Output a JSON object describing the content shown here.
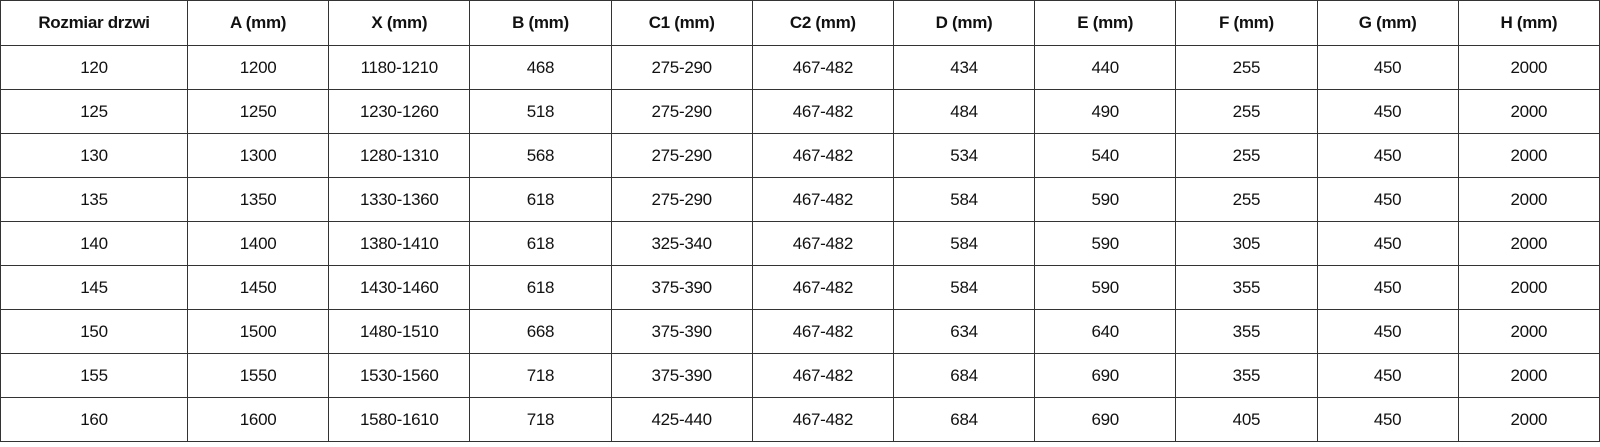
{
  "table": {
    "headers": [
      "Rozmiar drzwi",
      "A (mm)",
      "X (mm)",
      "B (mm)",
      "C1 (mm)",
      "C2 (mm)",
      "D (mm)",
      "E (mm)",
      "F (mm)",
      "G (mm)",
      "H (mm)"
    ],
    "rows": [
      [
        "120",
        "1200",
        "1180-1210",
        "468",
        "275-290",
        "467-482",
        "434",
        "440",
        "255",
        "450",
        "2000"
      ],
      [
        "125",
        "1250",
        "1230-1260",
        "518",
        "275-290",
        "467-482",
        "484",
        "490",
        "255",
        "450",
        "2000"
      ],
      [
        "130",
        "1300",
        "1280-1310",
        "568",
        "275-290",
        "467-482",
        "534",
        "540",
        "255",
        "450",
        "2000"
      ],
      [
        "135",
        "1350",
        "1330-1360",
        "618",
        "275-290",
        "467-482",
        "584",
        "590",
        "255",
        "450",
        "2000"
      ],
      [
        "140",
        "1400",
        "1380-1410",
        "618",
        "325-340",
        "467-482",
        "584",
        "590",
        "305",
        "450",
        "2000"
      ],
      [
        "145",
        "1450",
        "1430-1460",
        "618",
        "375-390",
        "467-482",
        "584",
        "590",
        "355",
        "450",
        "2000"
      ],
      [
        "150",
        "1500",
        "1480-1510",
        "668",
        "375-390",
        "467-482",
        "634",
        "640",
        "355",
        "450",
        "2000"
      ],
      [
        "155",
        "1550",
        "1530-1560",
        "718",
        "375-390",
        "467-482",
        "684",
        "690",
        "355",
        "450",
        "2000"
      ],
      [
        "160",
        "1600",
        "1580-1610",
        "718",
        "425-440",
        "467-482",
        "684",
        "690",
        "405",
        "450",
        "2000"
      ]
    ]
  }
}
